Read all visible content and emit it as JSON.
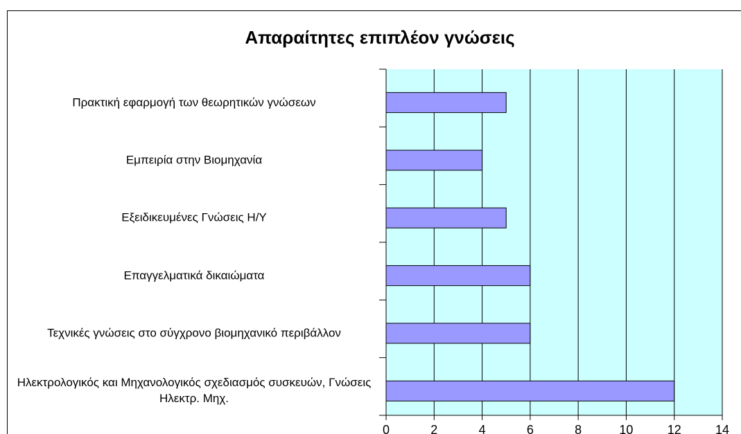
{
  "chart_data": {
    "type": "hbar",
    "title": "Απαραίτητες επιπλέον γνώσεις",
    "categories": [
      "Πρακτική εφαρμογή των θεωρητικών γνώσεων",
      "Εμπειρία στην Βιομηχανία",
      "Εξειδικευμένες Γνώσεις Η/Υ",
      "Επαγγελματικά δικαιώματα",
      "Τεχνικές γνώσεις στο σύγχρονο βιομηχανικό περιβάλλον",
      "Ηλεκτρολογικός και Μηχανολογικός σχεδιασμός συσκευών, Γνώσεις Ηλεκτρ. Μηχ."
    ],
    "values": [
      5,
      4,
      5,
      6,
      6,
      12
    ],
    "color": "#9999ff",
    "plot_background": "#ccffff",
    "xlim": [
      0,
      14
    ],
    "xticks": [
      0,
      2,
      4,
      6,
      8,
      10,
      12,
      14
    ],
    "grid": true
  }
}
